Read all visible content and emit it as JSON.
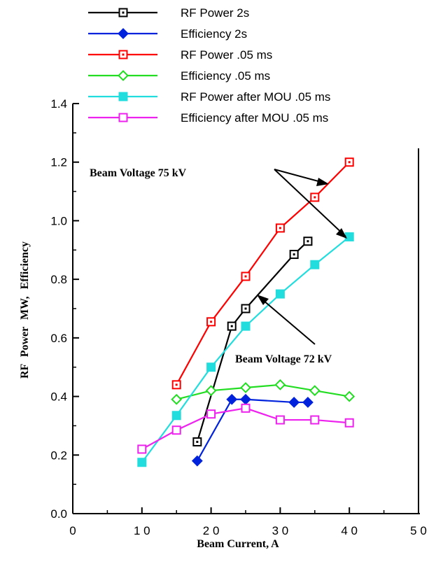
{
  "chart_data": {
    "type": "line",
    "xlabel": "Beam Current, A",
    "ylabel": "RF Power MW, Efficiency",
    "xlim": [
      0,
      50
    ],
    "ylim": [
      0.0,
      1.4
    ],
    "x_ticks": [
      "0",
      "1 0",
      "2 0",
      "3 0",
      "4 0",
      "5 0"
    ],
    "y_ticks": [
      "0.0",
      "0.2",
      "0.4",
      "0.6",
      "0.8",
      "1.0",
      "1.2",
      "1.4"
    ],
    "grid": false,
    "legend_position": "top",
    "series": [
      {
        "name": "RF Power 2s",
        "color": "#000000",
        "marker": "square-dotted",
        "x": [
          18,
          23,
          25,
          32,
          34
        ],
        "y": [
          0.245,
          0.64,
          0.7,
          0.885,
          0.93
        ]
      },
      {
        "name": "Efficiency 2s",
        "color": "#0022DD",
        "marker": "diamond-filled",
        "x": [
          18,
          23,
          25,
          32,
          34
        ],
        "y": [
          0.18,
          0.39,
          0.39,
          0.38,
          0.38
        ]
      },
      {
        "name": "RF Power .05 ms",
        "color": "#FF0000",
        "marker": "square-dotted",
        "x": [
          15,
          20,
          25,
          30,
          35,
          40
        ],
        "y": [
          0.44,
          0.655,
          0.81,
          0.975,
          1.08,
          1.2
        ]
      },
      {
        "name": "Efficiency .05 ms",
        "color": "#22DD22",
        "marker": "diamond-open",
        "x": [
          15,
          20,
          25,
          30,
          35,
          40
        ],
        "y": [
          0.39,
          0.42,
          0.43,
          0.44,
          0.42,
          0.4
        ]
      },
      {
        "name": "RF Power after MOU .05 ms",
        "color": "#22DDDD",
        "marker": "square-filled",
        "x": [
          10,
          15,
          20,
          25,
          30,
          35,
          40
        ],
        "y": [
          0.175,
          0.335,
          0.5,
          0.64,
          0.75,
          0.85,
          0.945
        ]
      },
      {
        "name": "Efficiency  after MOU .05 ms",
        "color": "#EE22EE",
        "marker": "square-open",
        "x": [
          10,
          15,
          20,
          25,
          30,
          35,
          40
        ],
        "y": [
          0.22,
          0.285,
          0.34,
          0.36,
          0.32,
          0.32,
          0.31
        ]
      }
    ],
    "annotations": [
      {
        "text": "Beam Voltage 75 kV"
      },
      {
        "text": "Beam Voltage 72 kV"
      }
    ]
  }
}
